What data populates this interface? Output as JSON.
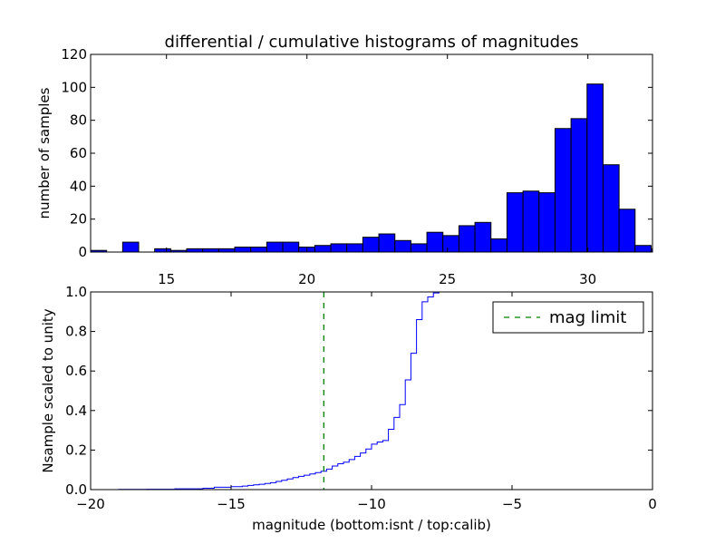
{
  "chart_data": [
    {
      "type": "bar",
      "title": "differential / cumulative histograms of magnitudes",
      "ylabel": "number of samples",
      "xlabel": "",
      "xlim": [
        12.3,
        32.3
      ],
      "ylim": [
        0,
        120
      ],
      "xticks": [
        15,
        20,
        25,
        30
      ],
      "yticks": [
        0,
        20,
        40,
        60,
        80,
        100,
        120
      ],
      "bar_color": "#0000ff",
      "edge_color": "#000000",
      "bins": [
        {
          "x0": 12.3,
          "x1": 12.87,
          "value": 1
        },
        {
          "x0": 12.87,
          "x1": 13.44,
          "value": 0
        },
        {
          "x0": 13.44,
          "x1": 14.01,
          "value": 6
        },
        {
          "x0": 14.01,
          "x1": 14.58,
          "value": 0
        },
        {
          "x0": 14.58,
          "x1": 15.15,
          "value": 2
        },
        {
          "x0": 15.15,
          "x1": 15.72,
          "value": 1
        },
        {
          "x0": 15.72,
          "x1": 16.29,
          "value": 2
        },
        {
          "x0": 16.29,
          "x1": 16.86,
          "value": 2
        },
        {
          "x0": 16.86,
          "x1": 17.43,
          "value": 2
        },
        {
          "x0": 17.43,
          "x1": 18.0,
          "value": 3
        },
        {
          "x0": 18.0,
          "x1": 18.57,
          "value": 3
        },
        {
          "x0": 18.57,
          "x1": 19.14,
          "value": 6
        },
        {
          "x0": 19.14,
          "x1": 19.71,
          "value": 6
        },
        {
          "x0": 19.71,
          "x1": 20.28,
          "value": 3
        },
        {
          "x0": 20.28,
          "x1": 20.85,
          "value": 4
        },
        {
          "x0": 20.85,
          "x1": 21.42,
          "value": 5
        },
        {
          "x0": 21.42,
          "x1": 21.99,
          "value": 5
        },
        {
          "x0": 21.99,
          "x1": 22.56,
          "value": 9
        },
        {
          "x0": 22.56,
          "x1": 23.13,
          "value": 11
        },
        {
          "x0": 23.13,
          "x1": 23.7,
          "value": 7
        },
        {
          "x0": 23.7,
          "x1": 24.27,
          "value": 5
        },
        {
          "x0": 24.27,
          "x1": 24.84,
          "value": 12
        },
        {
          "x0": 24.84,
          "x1": 25.41,
          "value": 10
        },
        {
          "x0": 25.41,
          "x1": 25.98,
          "value": 16
        },
        {
          "x0": 25.98,
          "x1": 26.55,
          "value": 18
        },
        {
          "x0": 26.55,
          "x1": 27.12,
          "value": 8
        },
        {
          "x0": 27.12,
          "x1": 27.69,
          "value": 36
        },
        {
          "x0": 27.69,
          "x1": 28.26,
          "value": 37
        },
        {
          "x0": 28.26,
          "x1": 28.83,
          "value": 36
        },
        {
          "x0": 28.83,
          "x1": 29.4,
          "value": 75
        },
        {
          "x0": 29.4,
          "x1": 29.97,
          "value": 81
        },
        {
          "x0": 29.97,
          "x1": 30.54,
          "value": 102
        },
        {
          "x0": 30.54,
          "x1": 31.11,
          "value": 53
        },
        {
          "x0": 31.11,
          "x1": 31.68,
          "value": 26
        },
        {
          "x0": 31.68,
          "x1": 32.25,
          "value": 4
        },
        {
          "x0": 32.25,
          "x1": 32.82,
          "value": 2
        }
      ]
    },
    {
      "type": "line",
      "title": "",
      "xlabel": "magnitude (bottom:isnt / top:calib)",
      "ylabel": "Nsample scaled to unity",
      "xlim": [
        -20,
        0
      ],
      "ylim": [
        0,
        1
      ],
      "xticks": [
        -20,
        -15,
        -10,
        -5,
        0
      ],
      "yticks": [
        0.0,
        0.2,
        0.4,
        0.6,
        0.8,
        1.0
      ],
      "legend": {
        "position": "top-right",
        "entries": [
          {
            "label": "mag limit",
            "color": "#008000",
            "style": "dashed"
          }
        ]
      },
      "series": [
        {
          "name": "",
          "color": "#0000ff",
          "step": true,
          "points": [
            [
              -20,
              0.0
            ],
            [
              -19,
              0.001
            ],
            [
              -18,
              0.002
            ],
            [
              -17,
              0.004
            ],
            [
              -16,
              0.007
            ],
            [
              -15.6,
              0.012
            ],
            [
              -15,
              0.015
            ],
            [
              -14.6,
              0.018
            ],
            [
              -14.4,
              0.021
            ],
            [
              -14.2,
              0.024
            ],
            [
              -14.0,
              0.027
            ],
            [
              -13.8,
              0.031
            ],
            [
              -13.6,
              0.035
            ],
            [
              -13.4,
              0.041
            ],
            [
              -13.2,
              0.047
            ],
            [
              -13.0,
              0.054
            ],
            [
              -12.8,
              0.061
            ],
            [
              -12.6,
              0.067
            ],
            [
              -12.4,
              0.073
            ],
            [
              -12.2,
              0.079
            ],
            [
              -12.0,
              0.086
            ],
            [
              -11.8,
              0.093
            ],
            [
              -11.6,
              0.104
            ],
            [
              -11.4,
              0.119
            ],
            [
              -11.2,
              0.131
            ],
            [
              -11.0,
              0.139
            ],
            [
              -10.8,
              0.152
            ],
            [
              -10.6,
              0.168
            ],
            [
              -10.4,
              0.185
            ],
            [
              -10.2,
              0.205
            ],
            [
              -10.0,
              0.23
            ],
            [
              -9.8,
              0.241
            ],
            [
              -9.6,
              0.248
            ],
            [
              -9.4,
              0.305
            ],
            [
              -9.2,
              0.365
            ],
            [
              -9.0,
              0.43
            ],
            [
              -8.8,
              0.555
            ],
            [
              -8.6,
              0.69
            ],
            [
              -8.4,
              0.86
            ],
            [
              -8.2,
              0.95
            ],
            [
              -8.0,
              0.975
            ],
            [
              -7.8,
              0.995
            ],
            [
              -7.6,
              1.0
            ],
            [
              0,
              1.0
            ]
          ]
        }
      ],
      "vline": {
        "x": -11.7,
        "color": "#008000",
        "style": "dashed"
      }
    }
  ]
}
